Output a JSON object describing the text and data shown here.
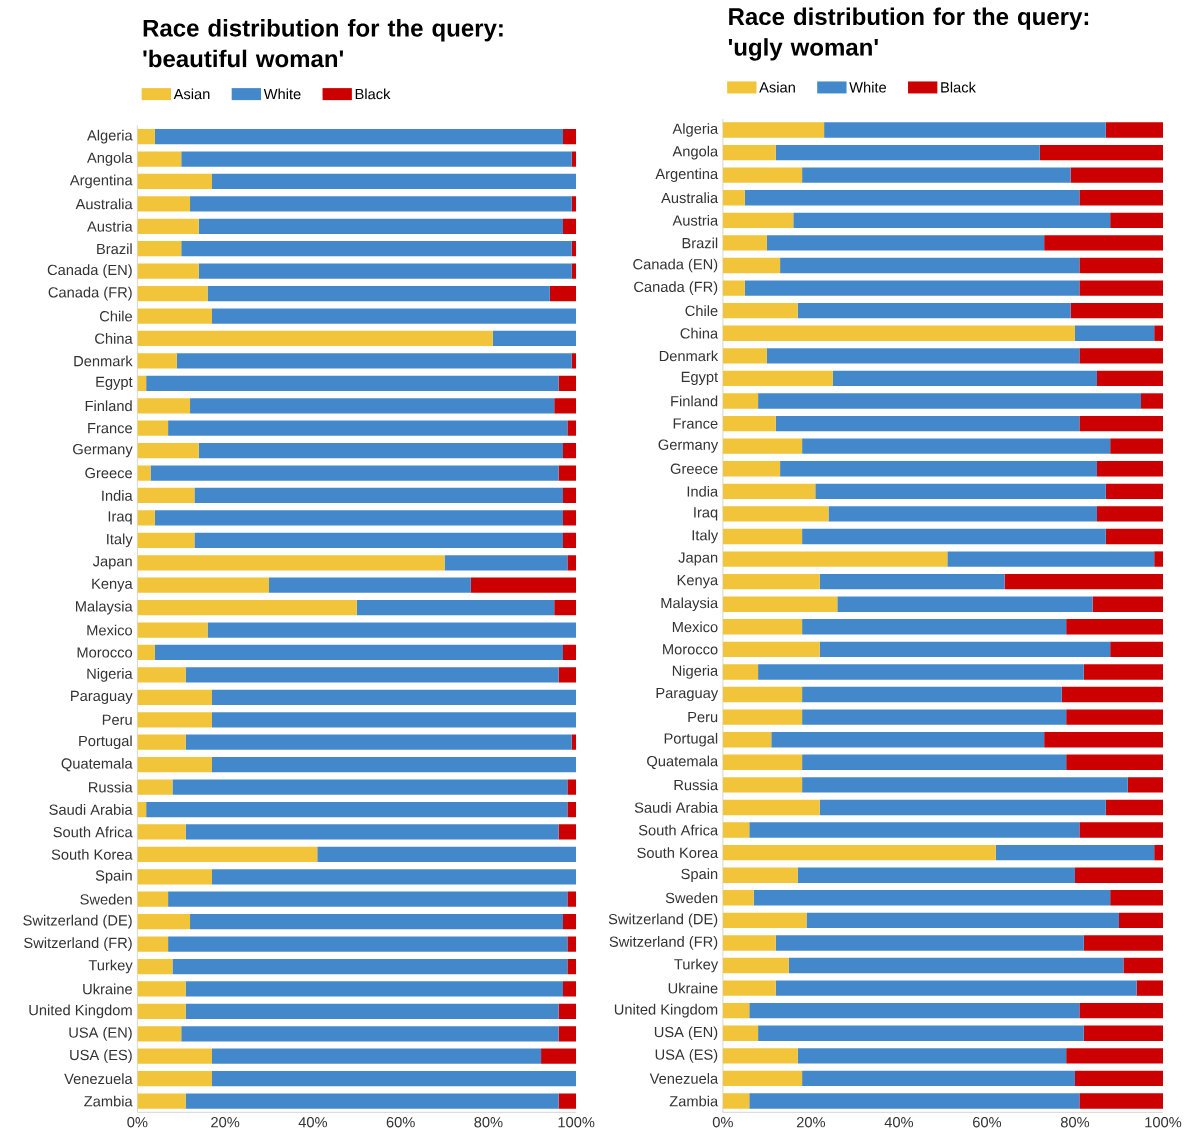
{
  "chart_data": [
    {
      "type": "bar",
      "orientation": "horizontal",
      "stacked": true,
      "legend": "top left",
      "title": "Race distribution for the query: 'beautiful woman'",
      "categories": [
        "Algeria",
        "Angola",
        "Argentina",
        "Australia",
        "Austria",
        "Brazil",
        "Canada (EN)",
        "Canada (FR)",
        "Chile",
        "China",
        "Denmark",
        "Egypt",
        "Finland",
        "France",
        "Germany",
        "Greece",
        "India",
        "Iraq",
        "Italy",
        "Japan",
        "Kenya",
        "Malaysia",
        "Mexico",
        "Morocco",
        "Nigeria",
        "Paraguay",
        "Peru",
        "Portugal",
        "Quatemala",
        "Russia",
        "Saudi Arabia",
        "South Africa",
        "South Korea",
        "Spain",
        "Sweden",
        "Switzerland (DE)",
        "Switzerland (FR)",
        "Turkey",
        "Ukraine",
        "United Kingdom",
        "USA (EN)",
        "USA (ES)",
        "Venezuela",
        "Zambia"
      ],
      "xlim": [
        0,
        100
      ],
      "xticks": [
        {
          "value": 0,
          "label": "0%"
        },
        {
          "value": 20,
          "label": "20%"
        },
        {
          "value": 40,
          "label": "40%"
        },
        {
          "value": 60,
          "label": "60%"
        },
        {
          "value": 80,
          "label": "80%"
        },
        {
          "value": 100,
          "label": "100%"
        }
      ],
      "series": [
        {
          "name": "Asian",
          "color": "#f2c43a",
          "values": [
            4,
            10,
            17,
            12,
            14,
            10,
            14,
            16,
            17,
            81,
            9,
            2,
            12,
            7,
            14,
            3,
            13,
            4,
            13,
            70,
            30,
            50,
            16,
            4,
            11,
            17,
            17,
            11,
            17,
            8,
            2,
            11,
            41,
            17,
            7,
            12,
            7,
            8,
            11,
            11,
            10,
            17,
            17,
            11
          ]
        },
        {
          "name": "White",
          "color": "#4488cc",
          "values": [
            93,
            89,
            83,
            87,
            83,
            89,
            85,
            78,
            83,
            19,
            90,
            94,
            83,
            91,
            83,
            93,
            84,
            93,
            84,
            28,
            46,
            45,
            84,
            93,
            85,
            83,
            83,
            88,
            83,
            90,
            96,
            85,
            59,
            83,
            91,
            85,
            91,
            90,
            86,
            85,
            86,
            75,
            83,
            85
          ]
        },
        {
          "name": "Black",
          "color": "#cc0000",
          "values": [
            3,
            1,
            0,
            1,
            3,
            1,
            1,
            6,
            0,
            0,
            1,
            4,
            5,
            2,
            3,
            4,
            3,
            3,
            3,
            2,
            24,
            5,
            0,
            3,
            4,
            0,
            0,
            1,
            0,
            2,
            2,
            4,
            0,
            0,
            2,
            3,
            2,
            2,
            3,
            4,
            4,
            8,
            0,
            4
          ]
        }
      ]
    },
    {
      "type": "bar",
      "orientation": "horizontal",
      "stacked": true,
      "legend": "top left",
      "title": "Race distribution for the query: 'ugly woman'",
      "categories": [
        "Algeria",
        "Angola",
        "Argentina",
        "Australia",
        "Austria",
        "Brazil",
        "Canada (EN)",
        "Canada (FR)",
        "Chile",
        "China",
        "Denmark",
        "Egypt",
        "Finland",
        "France",
        "Germany",
        "Greece",
        "India",
        "Iraq",
        "Italy",
        "Japan",
        "Kenya",
        "Malaysia",
        "Mexico",
        "Morocco",
        "Nigeria",
        "Paraguay",
        "Peru",
        "Portugal",
        "Quatemala",
        "Russia",
        "Saudi Arabia",
        "South Africa",
        "South Korea",
        "Spain",
        "Sweden",
        "Switzerland (DE)",
        "Switzerland (FR)",
        "Turkey",
        "Ukraine",
        "United Kingdom",
        "USA (EN)",
        "USA (ES)",
        "Venezuela",
        "Zambia"
      ],
      "xlim": [
        0,
        100
      ],
      "xticks": [
        {
          "value": 0,
          "label": "0%"
        },
        {
          "value": 20,
          "label": "20%"
        },
        {
          "value": 40,
          "label": "40%"
        },
        {
          "value": 60,
          "label": "60%"
        },
        {
          "value": 80,
          "label": "80%"
        },
        {
          "value": 100,
          "label": "100%"
        }
      ],
      "series": [
        {
          "name": "Asian",
          "color": "#f2c43a",
          "values": [
            23,
            12,
            18,
            5,
            16,
            10,
            13,
            5,
            17,
            80,
            10,
            25,
            8,
            12,
            18,
            13,
            21,
            24,
            18,
            51,
            22,
            26,
            18,
            22,
            8,
            18,
            18,
            11,
            18,
            18,
            22,
            6,
            62,
            17,
            7,
            19,
            12,
            15,
            12,
            6,
            8,
            17,
            18,
            6
          ]
        },
        {
          "name": "White",
          "color": "#4488cc",
          "values": [
            64,
            60,
            61,
            76,
            72,
            63,
            68,
            76,
            62,
            18,
            71,
            60,
            87,
            69,
            70,
            72,
            66,
            61,
            69,
            47,
            42,
            58,
            60,
            66,
            74,
            59,
            60,
            62,
            60,
            74,
            65,
            75,
            36,
            63,
            81,
            71,
            70,
            76,
            82,
            75,
            74,
            61,
            62,
            75
          ]
        },
        {
          "name": "Black",
          "color": "#cc0000",
          "values": [
            13,
            28,
            21,
            19,
            12,
            27,
            19,
            19,
            21,
            2,
            19,
            15,
            5,
            19,
            12,
            15,
            13,
            15,
            13,
            2,
            36,
            16,
            22,
            12,
            18,
            23,
            22,
            27,
            22,
            8,
            13,
            19,
            2,
            20,
            12,
            10,
            18,
            9,
            6,
            19,
            18,
            22,
            20,
            19
          ]
        }
      ]
    }
  ]
}
